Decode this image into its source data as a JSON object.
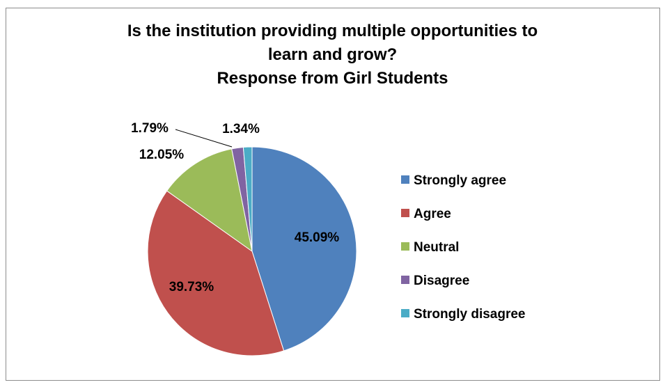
{
  "chart_data": {
    "type": "pie",
    "title_lines": [
      "Is the institution providing multiple opportunities to",
      "learn and grow?",
      "Response from Girl Students"
    ],
    "categories": [
      "Strongly agree",
      "Agree",
      "Neutral",
      "Disagree",
      "Strongly disagree"
    ],
    "values": [
      45.09,
      39.73,
      12.05,
      1.79,
      1.34
    ],
    "data_labels": [
      "45.09%",
      "39.73%",
      "12.05%",
      "1.79%",
      "1.34%"
    ],
    "colors": [
      "#4f81bd",
      "#c0504d",
      "#9bbb59",
      "#8064a2",
      "#4bacc6"
    ],
    "legend_position": "right"
  }
}
